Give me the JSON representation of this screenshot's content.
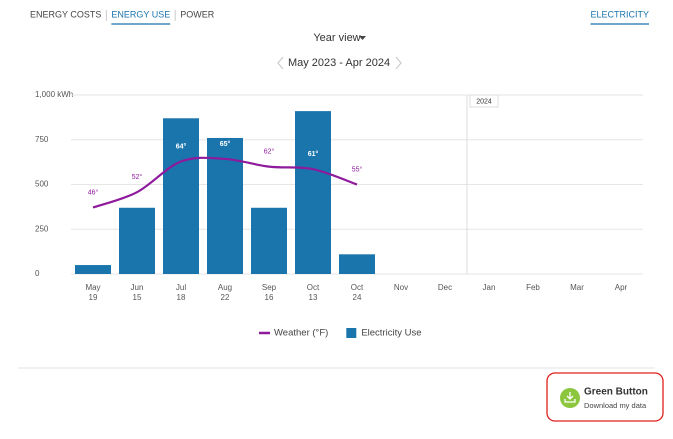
{
  "tabs": [
    "ENERGY COSTS",
    "ENERGY USE",
    "POWER"
  ],
  "active_tab": 1,
  "fuel_tab": "ELECTRICITY",
  "view_selector": "Year view",
  "date_range": "May 2023 - Apr 2024",
  "chart_data": {
    "type": "bar",
    "categories": [
      "May",
      "Jun",
      "Jul",
      "Aug",
      "Sep",
      "Oct",
      "Oct",
      "Nov",
      "Dec",
      "Jan",
      "Feb",
      "Mar",
      "Apr"
    ],
    "category_sublabels": [
      "19",
      "15",
      "18",
      "22",
      "16",
      "13",
      "24",
      null,
      null,
      null,
      null,
      null,
      null
    ],
    "ylim": [
      0,
      1000
    ],
    "yticks": [
      0,
      250,
      500,
      750,
      {
        "value": 1000,
        "label": "1,000 kWh"
      }
    ],
    "y2lim": [
      20,
      90
    ],
    "grid": true,
    "year_marker": "2024",
    "series": [
      {
        "name": "Electricity Use",
        "type": "bar",
        "color": "#1a75ad",
        "values": [
          50,
          370,
          870,
          760,
          370,
          910,
          110,
          null,
          null,
          null,
          null,
          null,
          null
        ]
      },
      {
        "name": "Weather (°F)",
        "type": "line",
        "axis": "y2",
        "color": "#8e1a9c",
        "values": [
          46,
          52,
          64,
          65,
          62,
          61,
          55,
          null,
          null,
          null,
          null,
          null,
          null
        ],
        "value_labels": [
          "46°",
          "52°",
          "64°",
          "65°",
          "62°",
          "61°",
          "55°",
          null,
          null,
          null,
          null,
          null,
          null
        ]
      }
    ],
    "legend": "bottom"
  },
  "green_button": {
    "title": "Green Button",
    "subtitle": "Download my data"
  }
}
